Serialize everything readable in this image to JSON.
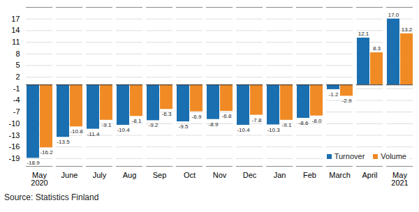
{
  "chart_data": {
    "type": "bar",
    "caption": "Source: Statistics Finland",
    "categories": [
      "May\n2020",
      "June",
      "July",
      "Aug",
      "Sep",
      "Oct",
      "Nov",
      "Dec",
      "Jan",
      "Feb",
      "March",
      "April",
      "May\n2021"
    ],
    "series": [
      {
        "name": "Turnover",
        "color": "#1a6fb0",
        "values": [
          -18.9,
          -13.5,
          -11.4,
          -10.4,
          -9.2,
          -9.5,
          -8.9,
          -10.4,
          -10.3,
          -8.6,
          -1.2,
          12.1,
          17.0
        ],
        "value_labels": [
          "-18.9",
          "-13.5",
          "-11.4",
          "-10.4",
          "-9.2",
          "-9.5",
          "-8.9",
          "-10.4",
          "-10.3",
          "-8.6",
          "-1.2",
          "12.1",
          "17.0"
        ]
      },
      {
        "name": "Volume",
        "color": "#f08a24",
        "values": [
          -16.2,
          -10.8,
          -9.1,
          -8.1,
          -6.3,
          -6.9,
          -6.8,
          -7.8,
          -9.1,
          -8.0,
          -2.9,
          8.3,
          13.2
        ],
        "value_labels": [
          "-16.2",
          "-10.8",
          "-9.1",
          "-8.1",
          "-6.3",
          "-6.9",
          "-6.8",
          "-7.8",
          "-9.1",
          "-8.0",
          "-2.9",
          "8.3",
          "13.2"
        ]
      }
    ],
    "ylim": [
      -21,
      20
    ],
    "yticks": [
      -19,
      -16,
      -13,
      -10,
      -7,
      -4,
      -1,
      2,
      5,
      8,
      11,
      14,
      17
    ],
    "grid": true,
    "data_labels": true,
    "legend": "lower right"
  }
}
